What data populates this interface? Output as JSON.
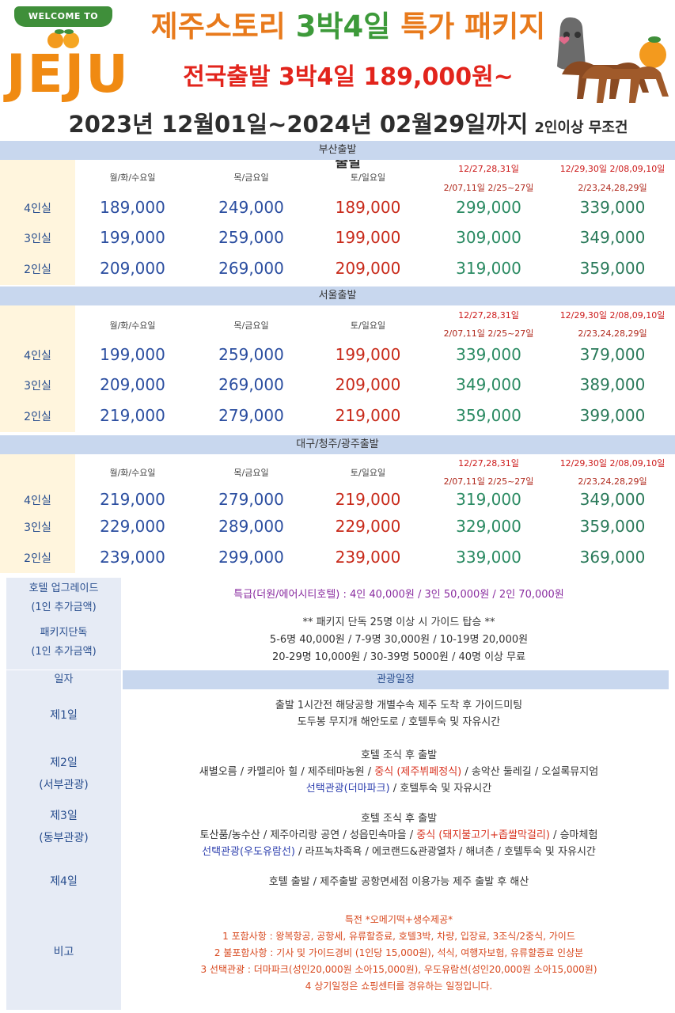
{
  "header": {
    "welcome": "WELCOME TO",
    "logo": "JEJU",
    "title_part1": "제주스토리 ",
    "title_part2": "3박4일",
    "title_part3": " 특가 패키지",
    "subtitle": "전국출발 3박4일 189,000원~",
    "period": "2023년 12월01일~2024년 02월29일까지",
    "condition": "2인이상 무조건 출발"
  },
  "sections": [
    {
      "name": "부산출발",
      "headers": [
        "월/화/수요일",
        "목/금요일",
        "토/일요일"
      ],
      "peak1": [
        "12/27,28,31일",
        "2/07,11일  2/25~27일"
      ],
      "peak2": [
        "12/29,30일 2/08,09,10일",
        "2/23,24,28,29일"
      ],
      "rows": [
        {
          "room": "4인실",
          "prices": [
            "189,000",
            "249,000",
            "189,000",
            "299,000",
            "339,000"
          ]
        },
        {
          "room": "3인실",
          "prices": [
            "199,000",
            "259,000",
            "199,000",
            "309,000",
            "349,000"
          ]
        },
        {
          "room": "2인실",
          "prices": [
            "209,000",
            "269,000",
            "209,000",
            "319,000",
            "359,000"
          ]
        }
      ]
    },
    {
      "name": "서울출발",
      "headers": [
        "월/화/수요일",
        "목/금요일",
        "토/일요일"
      ],
      "peak1": [
        "12/27,28,31일",
        "2/07,11일  2/25~27일"
      ],
      "peak2": [
        "12/29,30일 2/08,09,10일",
        "2/23,24,28,29일"
      ],
      "rows": [
        {
          "room": "4인실",
          "prices": [
            "199,000",
            "259,000",
            "199,000",
            "339,000",
            "379,000"
          ]
        },
        {
          "room": "3인실",
          "prices": [
            "209,000",
            "269,000",
            "209,000",
            "349,000",
            "389,000"
          ]
        },
        {
          "room": "2인실",
          "prices": [
            "219,000",
            "279,000",
            "219,000",
            "359,000",
            "399,000"
          ]
        }
      ]
    },
    {
      "name": "대구/청주/광주출발",
      "headers": [
        "월/화/수요일",
        "목/금요일",
        "토/일요일"
      ],
      "peak1": [
        "12/27,28,31일",
        "2/07,11일  2/25~27일"
      ],
      "peak2": [
        "12/29,30일 2/08,09,10일",
        "2/23,24,28,29일"
      ],
      "rows": [
        {
          "room": "4인실",
          "prices": [
            "219,000",
            "279,000",
            "219,000",
            "319,000",
            "349,000"
          ]
        },
        {
          "room": "3인실",
          "prices": [
            "229,000",
            "289,000",
            "229,000",
            "329,000",
            "359,000"
          ]
        },
        {
          "room": "2인실",
          "prices": [
            "239,000",
            "299,000",
            "239,000",
            "339,000",
            "369,000"
          ]
        }
      ]
    }
  ],
  "upgrade": {
    "label1": "호텔 업그레이드",
    "label2": "(1인 추가금액)",
    "text": "특급(더원/에어시티호텔) : 4인 40,000원 / 3인 50,000원 / 2인 70,000원"
  },
  "package": {
    "label1": "패키지단독",
    "label2": "(1인 추가금액)",
    "line1": "** 패키지 단독 25명 이상 시 가이드 탑승 **",
    "line2": "5-6명 40,000원 / 7-9명 30,000원 / 10-19명 20,000원",
    "line3": "20-29명 10,000원 / 30-39명 5000원 / 40명 이상 무료"
  },
  "schedule": {
    "day_header": "일자",
    "plan_header": "관광일정",
    "day1": {
      "label": "제1일",
      "l1": "출발 1시간전 해당공항 개별수속 제주 도착 후 가이드미팅",
      "l2": "도두봉 무지개 해안도로 / 호텔투숙 및 자유시간"
    },
    "day2": {
      "label": "제2일",
      "sub": "(서부관광)",
      "l1": "호텔 조식 후 출발",
      "l2a": "새별오름 / 카멜리아 힐 / 제주테마농원 / ",
      "l2b": "중식 (제주뷔페정식)",
      "l2c": " / 송악산 둘레길 / 오설록뮤지엄",
      "l3a": "선택관광(더마파크)",
      "l3b": " / 호텔투숙 및 자유시간"
    },
    "day3": {
      "label": "제3일",
      "sub": "(동부관광)",
      "l1": "호텔 조식 후 출발",
      "l2a": "토산품/농수산 / 제주아리랑 공연 / 성읍민속마을 / ",
      "l2b": "중식 (돼지불고기+좁쌀막걸리)",
      "l2c": " / 승마체험",
      "l3a": "선택관광(우도유람선)",
      "l3b": " / 라프녹차족욕 / 에코랜드&관광열차 / 해녀촌 / 호텔투숙 및 자유시간"
    },
    "day4": {
      "label": "제4일",
      "l1": "호텔 출발 / 제주출발 공항면세점 이용가능 제주 출발 후 해산"
    },
    "note": {
      "label": "비고",
      "l0": "특전 *오메기떡+생수제공*",
      "l1": "1 포함사항 : 왕복항공, 공항세, 유류할증료, 호텔3박, 차량, 입장료, 3조식/2중식, 가이드",
      "l2": "2 불포함사항 : 기사 및 가이드경비 (1인당 15,000원), 석식, 여행자보험, 유류할증료 인상분",
      "l3": "3 선택관광 : 더마파크(성인20,000원 소아15,000원), 우도유람선(성인20,000원 소아15,000원)",
      "l4": "4 상기일정은 쇼핑센터를 경유하는 일정입니다."
    }
  }
}
